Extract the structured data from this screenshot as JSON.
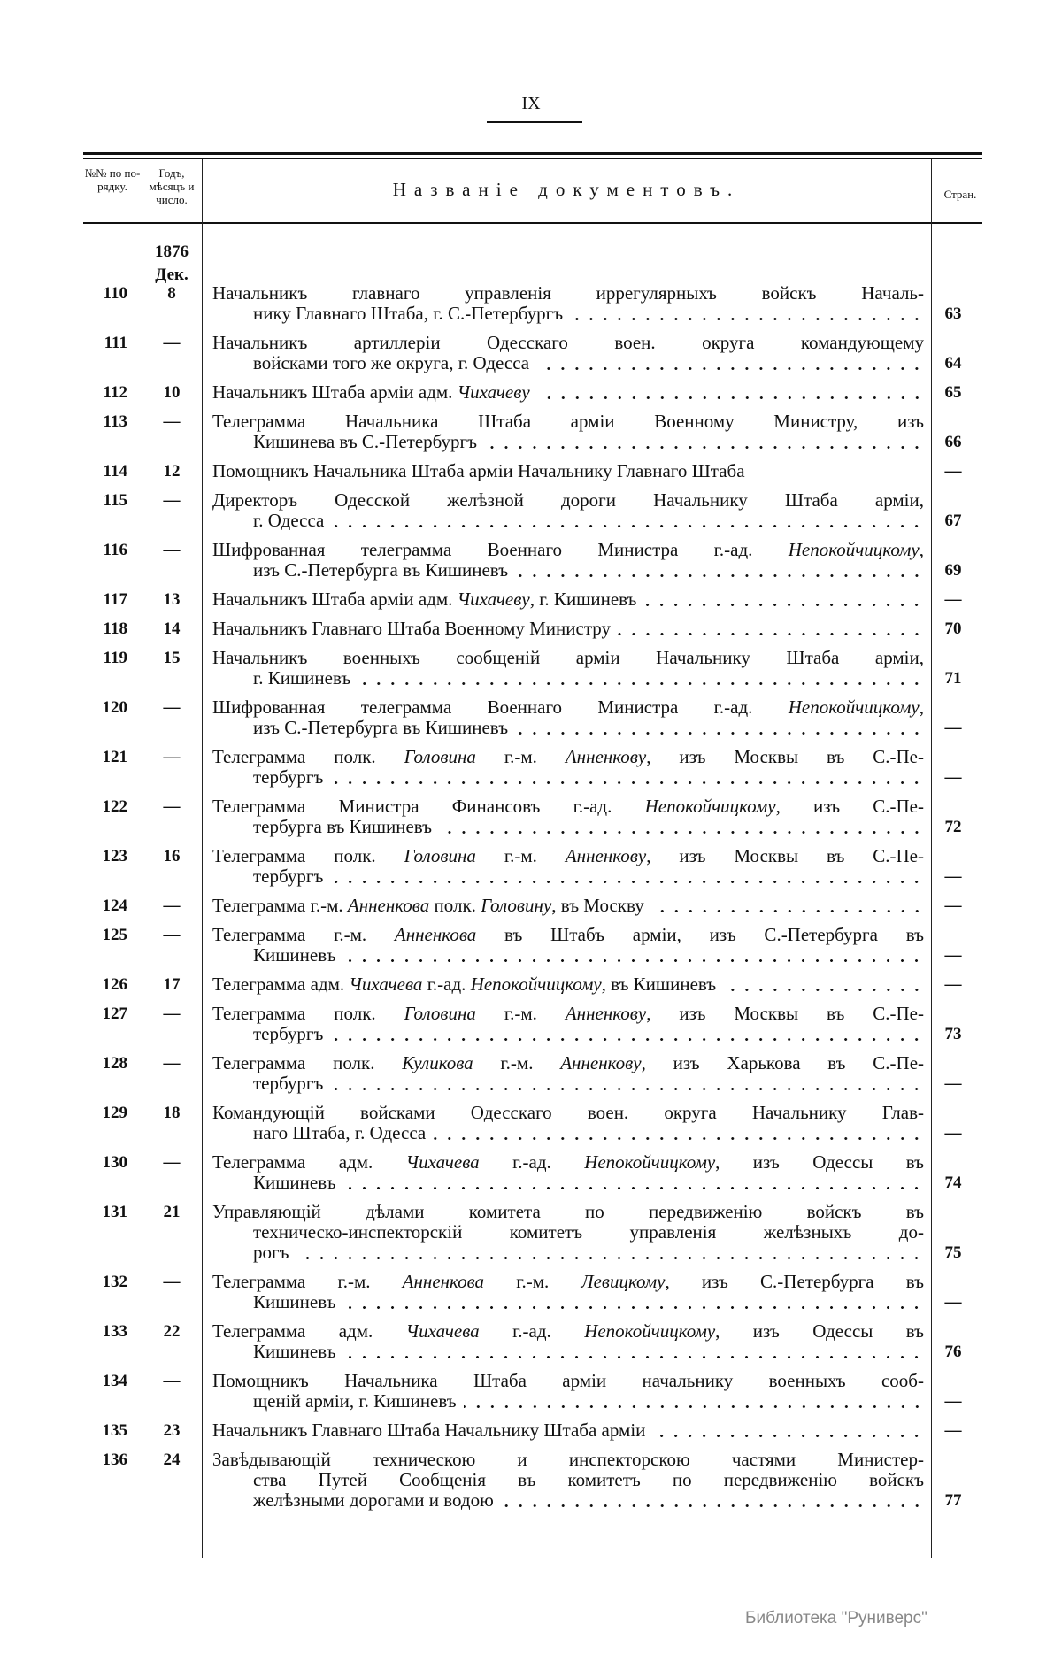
{
  "folio": "IX",
  "header": {
    "col_num": "№№ по по- рядку.",
    "col_date": "Годъ, мѣсяцъ и число.",
    "col_title": "Названіе документовъ.",
    "col_page": "Стран."
  },
  "year": "1876",
  "month": "Дек.",
  "rows": [
    {
      "num": "110",
      "date": "8",
      "page": "63",
      "lines": [
        [
          {
            "t": "Начальникъ главнаго управленія иррегулярныхъ войскъ Началь-"
          }
        ],
        [
          {
            "t": "нику Главнаго Штаба, г. С.-Петербургъ"
          }
        ]
      ]
    },
    {
      "num": "111",
      "date": "—",
      "page": "64",
      "lines": [
        [
          {
            "t": "Начальникъ артиллеріи Одесскаго воен. округа командующему"
          }
        ],
        [
          {
            "t": "войсками того же округа, г. Одесса"
          }
        ]
      ]
    },
    {
      "num": "112",
      "date": "10",
      "page": "65",
      "lines": [
        [
          {
            "t": "Начальникъ Штаба арміи адм. "
          },
          {
            "t": "Чихачеву",
            "i": true
          }
        ]
      ]
    },
    {
      "num": "113",
      "date": "—",
      "page": "66",
      "lines": [
        [
          {
            "t": "Телеграмма Начальника Штаба арміи Военному Министру, изъ"
          }
        ],
        [
          {
            "t": "Кишинева въ С.-Петербургъ"
          }
        ]
      ]
    },
    {
      "num": "114",
      "date": "12",
      "page": "—",
      "noleader": true,
      "lines": [
        [
          {
            "t": "Помощникъ Начальника Штаба арміи Начальнику Главнаго Штаба"
          }
        ]
      ]
    },
    {
      "num": "115",
      "date": "—",
      "page": "67",
      "lines": [
        [
          {
            "t": "Директоръ Одесской желѣзной дороги Начальнику Штаба арміи,"
          }
        ],
        [
          {
            "t": "г. Одесса"
          }
        ]
      ]
    },
    {
      "num": "116",
      "date": "—",
      "page": "69",
      "lines": [
        [
          {
            "t": "Шифрованная телеграмма Военнаго Министра г.-ад. "
          },
          {
            "t": "Непокойчицкому",
            "i": true
          },
          {
            "t": ","
          }
        ],
        [
          {
            "t": "изъ С.-Петербурга въ Кишиневъ"
          }
        ]
      ]
    },
    {
      "num": "117",
      "date": "13",
      "page": "—",
      "lines": [
        [
          {
            "t": "Начальникъ Штаба арміи адм. "
          },
          {
            "t": "Чихачеву",
            "i": true
          },
          {
            "t": ", г. Кишиневъ"
          }
        ]
      ]
    },
    {
      "num": "118",
      "date": "14",
      "page": "70",
      "lines": [
        [
          {
            "t": "Начальникъ Главнаго Штаба Военному Министру"
          }
        ]
      ]
    },
    {
      "num": "119",
      "date": "15",
      "page": "71",
      "lines": [
        [
          {
            "t": "Начальникъ военныхъ сообщеній арміи Начальнику Штаба арміи,"
          }
        ],
        [
          {
            "t": "г. Кишиневъ"
          }
        ]
      ]
    },
    {
      "num": "120",
      "date": "—",
      "page": "—",
      "lines": [
        [
          {
            "t": "Шифрованная телеграмма Военнаго Министра г.-ад. "
          },
          {
            "t": "Непокойчицкому",
            "i": true
          },
          {
            "t": ","
          }
        ],
        [
          {
            "t": "изъ С.-Петербурга въ Кишиневъ"
          }
        ]
      ]
    },
    {
      "num": "121",
      "date": "—",
      "page": "—",
      "lines": [
        [
          {
            "t": "Телеграмма полк. "
          },
          {
            "t": "Головина",
            "i": true
          },
          {
            "t": " г.-м. "
          },
          {
            "t": "Анненкову",
            "i": true
          },
          {
            "t": ", изъ Москвы въ С.-Пе-"
          }
        ],
        [
          {
            "t": "тербургъ"
          }
        ]
      ]
    },
    {
      "num": "122",
      "date": "—",
      "page": "72",
      "lines": [
        [
          {
            "t": "Телеграмма Министра Финансовъ г.-ад. "
          },
          {
            "t": "Непокойчицкому",
            "i": true
          },
          {
            "t": ", изъ С.-Пе-"
          }
        ],
        [
          {
            "t": "тербурга въ Кишиневъ"
          }
        ]
      ]
    },
    {
      "num": "123",
      "date": "16",
      "page": "—",
      "lines": [
        [
          {
            "t": "Телеграмма полк. "
          },
          {
            "t": "Головина",
            "i": true
          },
          {
            "t": " г.-м. "
          },
          {
            "t": "Анненкову",
            "i": true
          },
          {
            "t": ", изъ Москвы въ С.-Пе-"
          }
        ],
        [
          {
            "t": "тербургъ"
          }
        ]
      ]
    },
    {
      "num": "124",
      "date": "—",
      "page": "—",
      "lines": [
        [
          {
            "t": "Телеграмма г.-м. "
          },
          {
            "t": "Анненкова",
            "i": true
          },
          {
            "t": " полк. "
          },
          {
            "t": "Головину",
            "i": true
          },
          {
            "t": ", въ Москву"
          }
        ]
      ]
    },
    {
      "num": "125",
      "date": "—",
      "page": "—",
      "lines": [
        [
          {
            "t": "Телеграмма г.-м. "
          },
          {
            "t": "Анненкова",
            "i": true
          },
          {
            "t": " въ Штабъ арміи, изъ С.-Петербурга въ"
          }
        ],
        [
          {
            "t": "Кишиневъ"
          }
        ]
      ]
    },
    {
      "num": "126",
      "date": "17",
      "page": "—",
      "lines": [
        [
          {
            "t": "Телеграмма адм. "
          },
          {
            "t": "Чихачева",
            "i": true
          },
          {
            "t": " г.-ад. "
          },
          {
            "t": "Непокойчицкому",
            "i": true
          },
          {
            "t": ", въ Кишиневъ"
          }
        ]
      ]
    },
    {
      "num": "127",
      "date": "—",
      "page": "73",
      "lines": [
        [
          {
            "t": "Телеграмма полк. "
          },
          {
            "t": "Головина",
            "i": true
          },
          {
            "t": " г.-м. "
          },
          {
            "t": "Анненкову",
            "i": true
          },
          {
            "t": ", изъ Москвы въ С.-Пе-"
          }
        ],
        [
          {
            "t": "тербургъ"
          }
        ]
      ]
    },
    {
      "num": "128",
      "date": "—",
      "page": "—",
      "lines": [
        [
          {
            "t": "Телеграмма полк. "
          },
          {
            "t": "Куликова",
            "i": true
          },
          {
            "t": " г.-м. "
          },
          {
            "t": "Анненкову",
            "i": true
          },
          {
            "t": ", изъ Харькова въ С.-Пе-"
          }
        ],
        [
          {
            "t": "тербургъ"
          }
        ]
      ]
    },
    {
      "num": "129",
      "date": "18",
      "page": "—",
      "lines": [
        [
          {
            "t": "Командующій войсками Одесскаго воен. округа Начальнику Глав-"
          }
        ],
        [
          {
            "t": "наго Штаба, г. Одесса"
          }
        ]
      ]
    },
    {
      "num": "130",
      "date": "—",
      "page": "74",
      "lines": [
        [
          {
            "t": "Телеграмма адм. "
          },
          {
            "t": "Чихачева",
            "i": true
          },
          {
            "t": " г.-ад. "
          },
          {
            "t": "Непокойчицкому",
            "i": true
          },
          {
            "t": ", изъ Одессы въ"
          }
        ],
        [
          {
            "t": "Кишиневъ"
          }
        ]
      ]
    },
    {
      "num": "131",
      "date": "21",
      "page": "75",
      "lines": [
        [
          {
            "t": "Управляющій дѣлами комитета по передвиженію войскъ въ"
          }
        ],
        [
          {
            "t": "техническо-инспекторскій комитетъ управленія желѣзныхъ до-"
          }
        ],
        [
          {
            "t": "рогъ"
          }
        ]
      ]
    },
    {
      "num": "132",
      "date": "—",
      "page": "—",
      "lines": [
        [
          {
            "t": "Телеграмма г.-м. "
          },
          {
            "t": "Анненкова",
            "i": true
          },
          {
            "t": " г.-м. "
          },
          {
            "t": "Левицкому",
            "i": true
          },
          {
            "t": ", изъ С.-Петербурга въ"
          }
        ],
        [
          {
            "t": "Кишиневъ"
          }
        ]
      ]
    },
    {
      "num": "133",
      "date": "22",
      "page": "76",
      "lines": [
        [
          {
            "t": "Телеграмма адм. "
          },
          {
            "t": "Чихачева",
            "i": true
          },
          {
            "t": " г.-ад. "
          },
          {
            "t": "Непокойчицкому",
            "i": true
          },
          {
            "t": ", изъ Одессы въ"
          }
        ],
        [
          {
            "t": "Кишиневъ"
          }
        ]
      ]
    },
    {
      "num": "134",
      "date": "—",
      "page": "—",
      "lines": [
        [
          {
            "t": "Помощникъ Начальника Штаба арміи начальнику военныхъ сооб-"
          }
        ],
        [
          {
            "t": "щеній арміи, г. Кишиневъ"
          }
        ]
      ]
    },
    {
      "num": "135",
      "date": "23",
      "page": "—",
      "lines": [
        [
          {
            "t": "Начальникъ Главнаго Штаба Начальнику Штаба арміи"
          }
        ]
      ]
    },
    {
      "num": "136",
      "date": "24",
      "page": "77",
      "lines": [
        [
          {
            "t": "Завѣдывающій техническою и инспекторскою частями Министер-"
          }
        ],
        [
          {
            "t": "ства Путей Сообщенія въ комитетъ по передвиженію войскъ"
          }
        ],
        [
          {
            "t": "желѣзными дорогами и водою"
          }
        ]
      ]
    }
  ],
  "watermark": "Библиотека \"Руниверс\""
}
